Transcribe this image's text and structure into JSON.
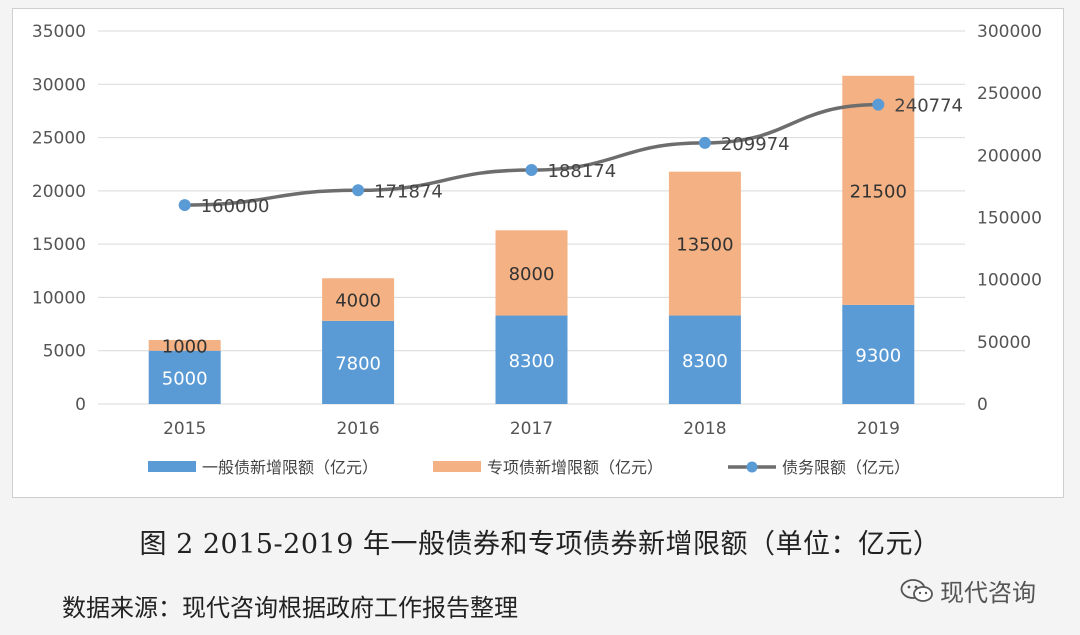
{
  "chart_data": {
    "type": "bar",
    "stacked": true,
    "categories": [
      "2015",
      "2016",
      "2017",
      "2018",
      "2019"
    ],
    "series": [
      {
        "name": "一般债新增限额（亿元）",
        "type": "bar",
        "axis": "left",
        "color": "#5b9bd5",
        "values": [
          5000,
          7800,
          8300,
          8300,
          9300
        ]
      },
      {
        "name": "专项债新增限额（亿元）",
        "type": "bar",
        "axis": "left",
        "color": "#f4b183",
        "values": [
          1000,
          4000,
          8000,
          13500,
          21500
        ]
      },
      {
        "name": "债务限额（亿元）",
        "type": "line",
        "axis": "right",
        "color": "#6d6d6d",
        "marker_color": "#5b9bd5",
        "values": [
          160000,
          171874,
          188174,
          209974,
          240774
        ]
      }
    ],
    "y_left": {
      "ylim": [
        0,
        35000
      ],
      "ticks": [
        "0",
        "5000",
        "10000",
        "15000",
        "20000",
        "25000",
        "30000",
        "35000"
      ]
    },
    "y_right": {
      "ylim": [
        0,
        300000
      ],
      "ticks": [
        "0",
        "50000",
        "100000",
        "150000",
        "200000",
        "250000",
        "300000"
      ]
    },
    "grid": true,
    "legend_position": "bottom"
  },
  "caption": "图 2  2015-2019 年一般债券和专项债券新增限额（单位：亿元）",
  "source": "数据来源：现代咨询根据政府工作报告整理",
  "watermark": "现代咨询"
}
